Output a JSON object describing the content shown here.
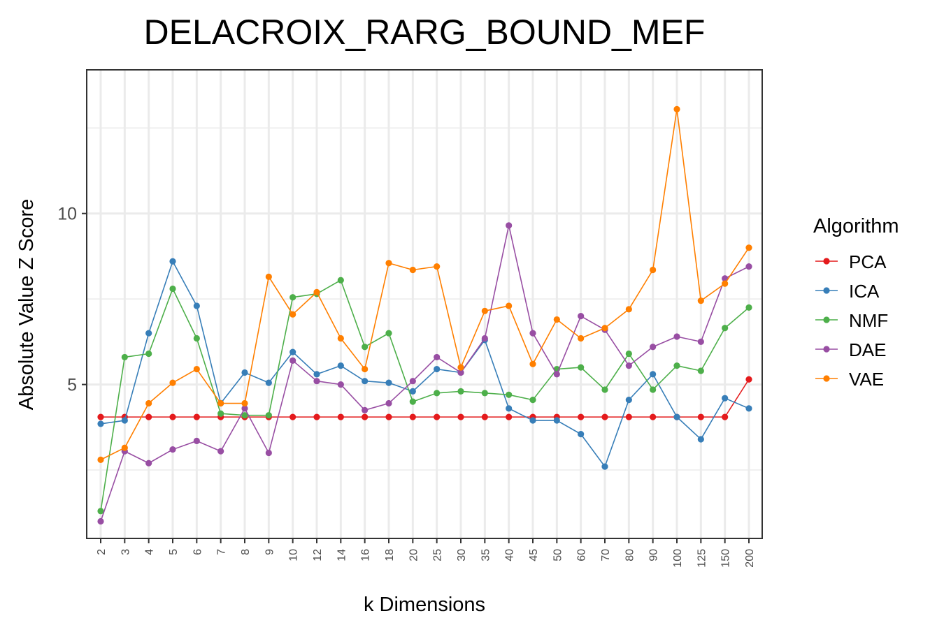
{
  "chart_data": {
    "type": "line",
    "title": "DELACROIX_RARG_BOUND_MEF",
    "xlabel": "k Dimensions",
    "ylabel": "Absolute Value Z Score",
    "categories": [
      "2",
      "3",
      "4",
      "5",
      "6",
      "7",
      "8",
      "9",
      "10",
      "12",
      "14",
      "16",
      "18",
      "20",
      "25",
      "30",
      "35",
      "40",
      "45",
      "50",
      "60",
      "70",
      "80",
      "90",
      "100",
      "125",
      "150",
      "200"
    ],
    "yticks": [
      5,
      10
    ],
    "ylim": [
      0.5,
      14.2
    ],
    "grid": true,
    "legend": {
      "title": "Algorithm",
      "position": "right"
    },
    "series": [
      {
        "name": "PCA",
        "color": "#e41a1c",
        "values": [
          4.05,
          4.05,
          4.05,
          4.05,
          4.05,
          4.05,
          4.05,
          4.05,
          4.05,
          4.05,
          4.05,
          4.05,
          4.05,
          4.05,
          4.05,
          4.05,
          4.05,
          4.05,
          4.05,
          4.05,
          4.05,
          4.05,
          4.05,
          4.05,
          4.05,
          4.05,
          4.05,
          5.15
        ]
      },
      {
        "name": "ICA",
        "color": "#377eb8",
        "values": [
          3.85,
          3.95,
          6.5,
          8.6,
          7.3,
          4.45,
          5.35,
          5.05,
          5.95,
          5.3,
          5.55,
          5.1,
          5.05,
          4.8,
          5.45,
          5.35,
          6.3,
          4.3,
          3.95,
          3.95,
          3.55,
          2.6,
          4.55,
          5.3,
          4.05,
          3.4,
          4.6,
          4.3
        ]
      },
      {
        "name": "NMF",
        "color": "#4daf4a",
        "values": [
          1.3,
          5.8,
          5.9,
          7.8,
          6.35,
          4.15,
          4.1,
          4.1,
          7.55,
          7.65,
          8.05,
          6.1,
          6.5,
          4.5,
          4.75,
          4.8,
          4.75,
          4.7,
          4.55,
          5.45,
          5.5,
          4.85,
          5.9,
          4.85,
          5.55,
          5.4,
          6.65,
          7.25
        ]
      },
      {
        "name": "DAE",
        "color": "#984ea3",
        "values": [
          1.0,
          3.05,
          2.7,
          3.1,
          3.35,
          3.05,
          4.3,
          3.0,
          5.7,
          5.1,
          5.0,
          4.25,
          4.45,
          5.1,
          5.8,
          5.35,
          6.35,
          9.65,
          6.5,
          5.3,
          7.0,
          6.6,
          5.55,
          6.1,
          6.4,
          6.25,
          8.1,
          8.45
        ]
      },
      {
        "name": "VAE",
        "color": "#ff7f00",
        "values": [
          2.8,
          3.15,
          4.45,
          5.05,
          5.45,
          4.45,
          4.45,
          8.15,
          7.05,
          7.7,
          6.35,
          5.45,
          8.55,
          8.35,
          8.45,
          5.5,
          7.15,
          7.3,
          5.6,
          6.9,
          6.35,
          6.65,
          7.2,
          8.35,
          13.05,
          7.45,
          7.95,
          9.0
        ]
      }
    ]
  }
}
